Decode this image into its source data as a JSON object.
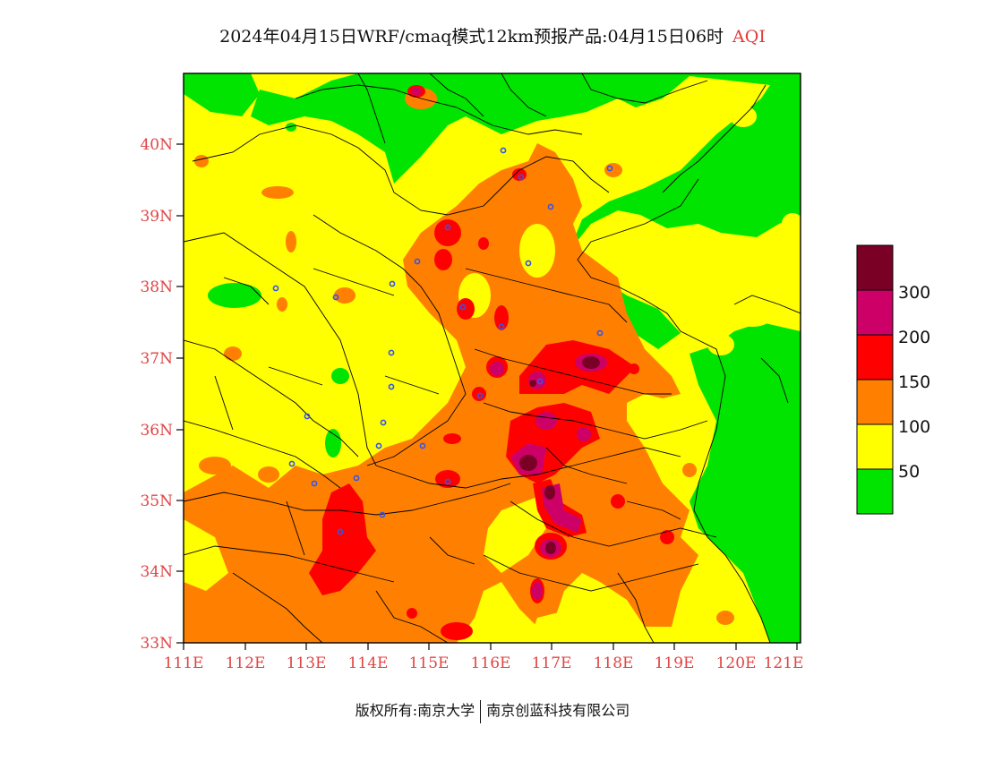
{
  "title": {
    "main": "2024年04月15日WRF/cmaq模式12km预报产品:04月15日06时",
    "aqi": "AQI"
  },
  "axes": {
    "lat_labels": [
      "40N",
      "39N",
      "38N",
      "37N",
      "36N",
      "35N",
      "34N",
      "33N"
    ],
    "lon_labels": [
      "111E",
      "112E",
      "113E",
      "114E",
      "115E",
      "116E",
      "117E",
      "118E",
      "119E",
      "120E",
      "121E"
    ]
  },
  "legend": {
    "labels": [
      "300",
      "200",
      "150",
      "100",
      "50"
    ],
    "colors": [
      "#7a0026",
      "#cc0066",
      "#ff0000",
      "#ff8000",
      "#ffff00",
      "#00e400"
    ]
  },
  "colors": {
    "good": "#00e400",
    "moderate": "#ffff00",
    "usg": "#ff8000",
    "unhealthy": "#ff0000",
    "very_unhealthy": "#cc0066",
    "hazardous": "#7a0026",
    "axis_label": "#e04444"
  },
  "footer": {
    "left": "版权所有:南京大学",
    "right": "南京创蓝科技有限公司"
  }
}
